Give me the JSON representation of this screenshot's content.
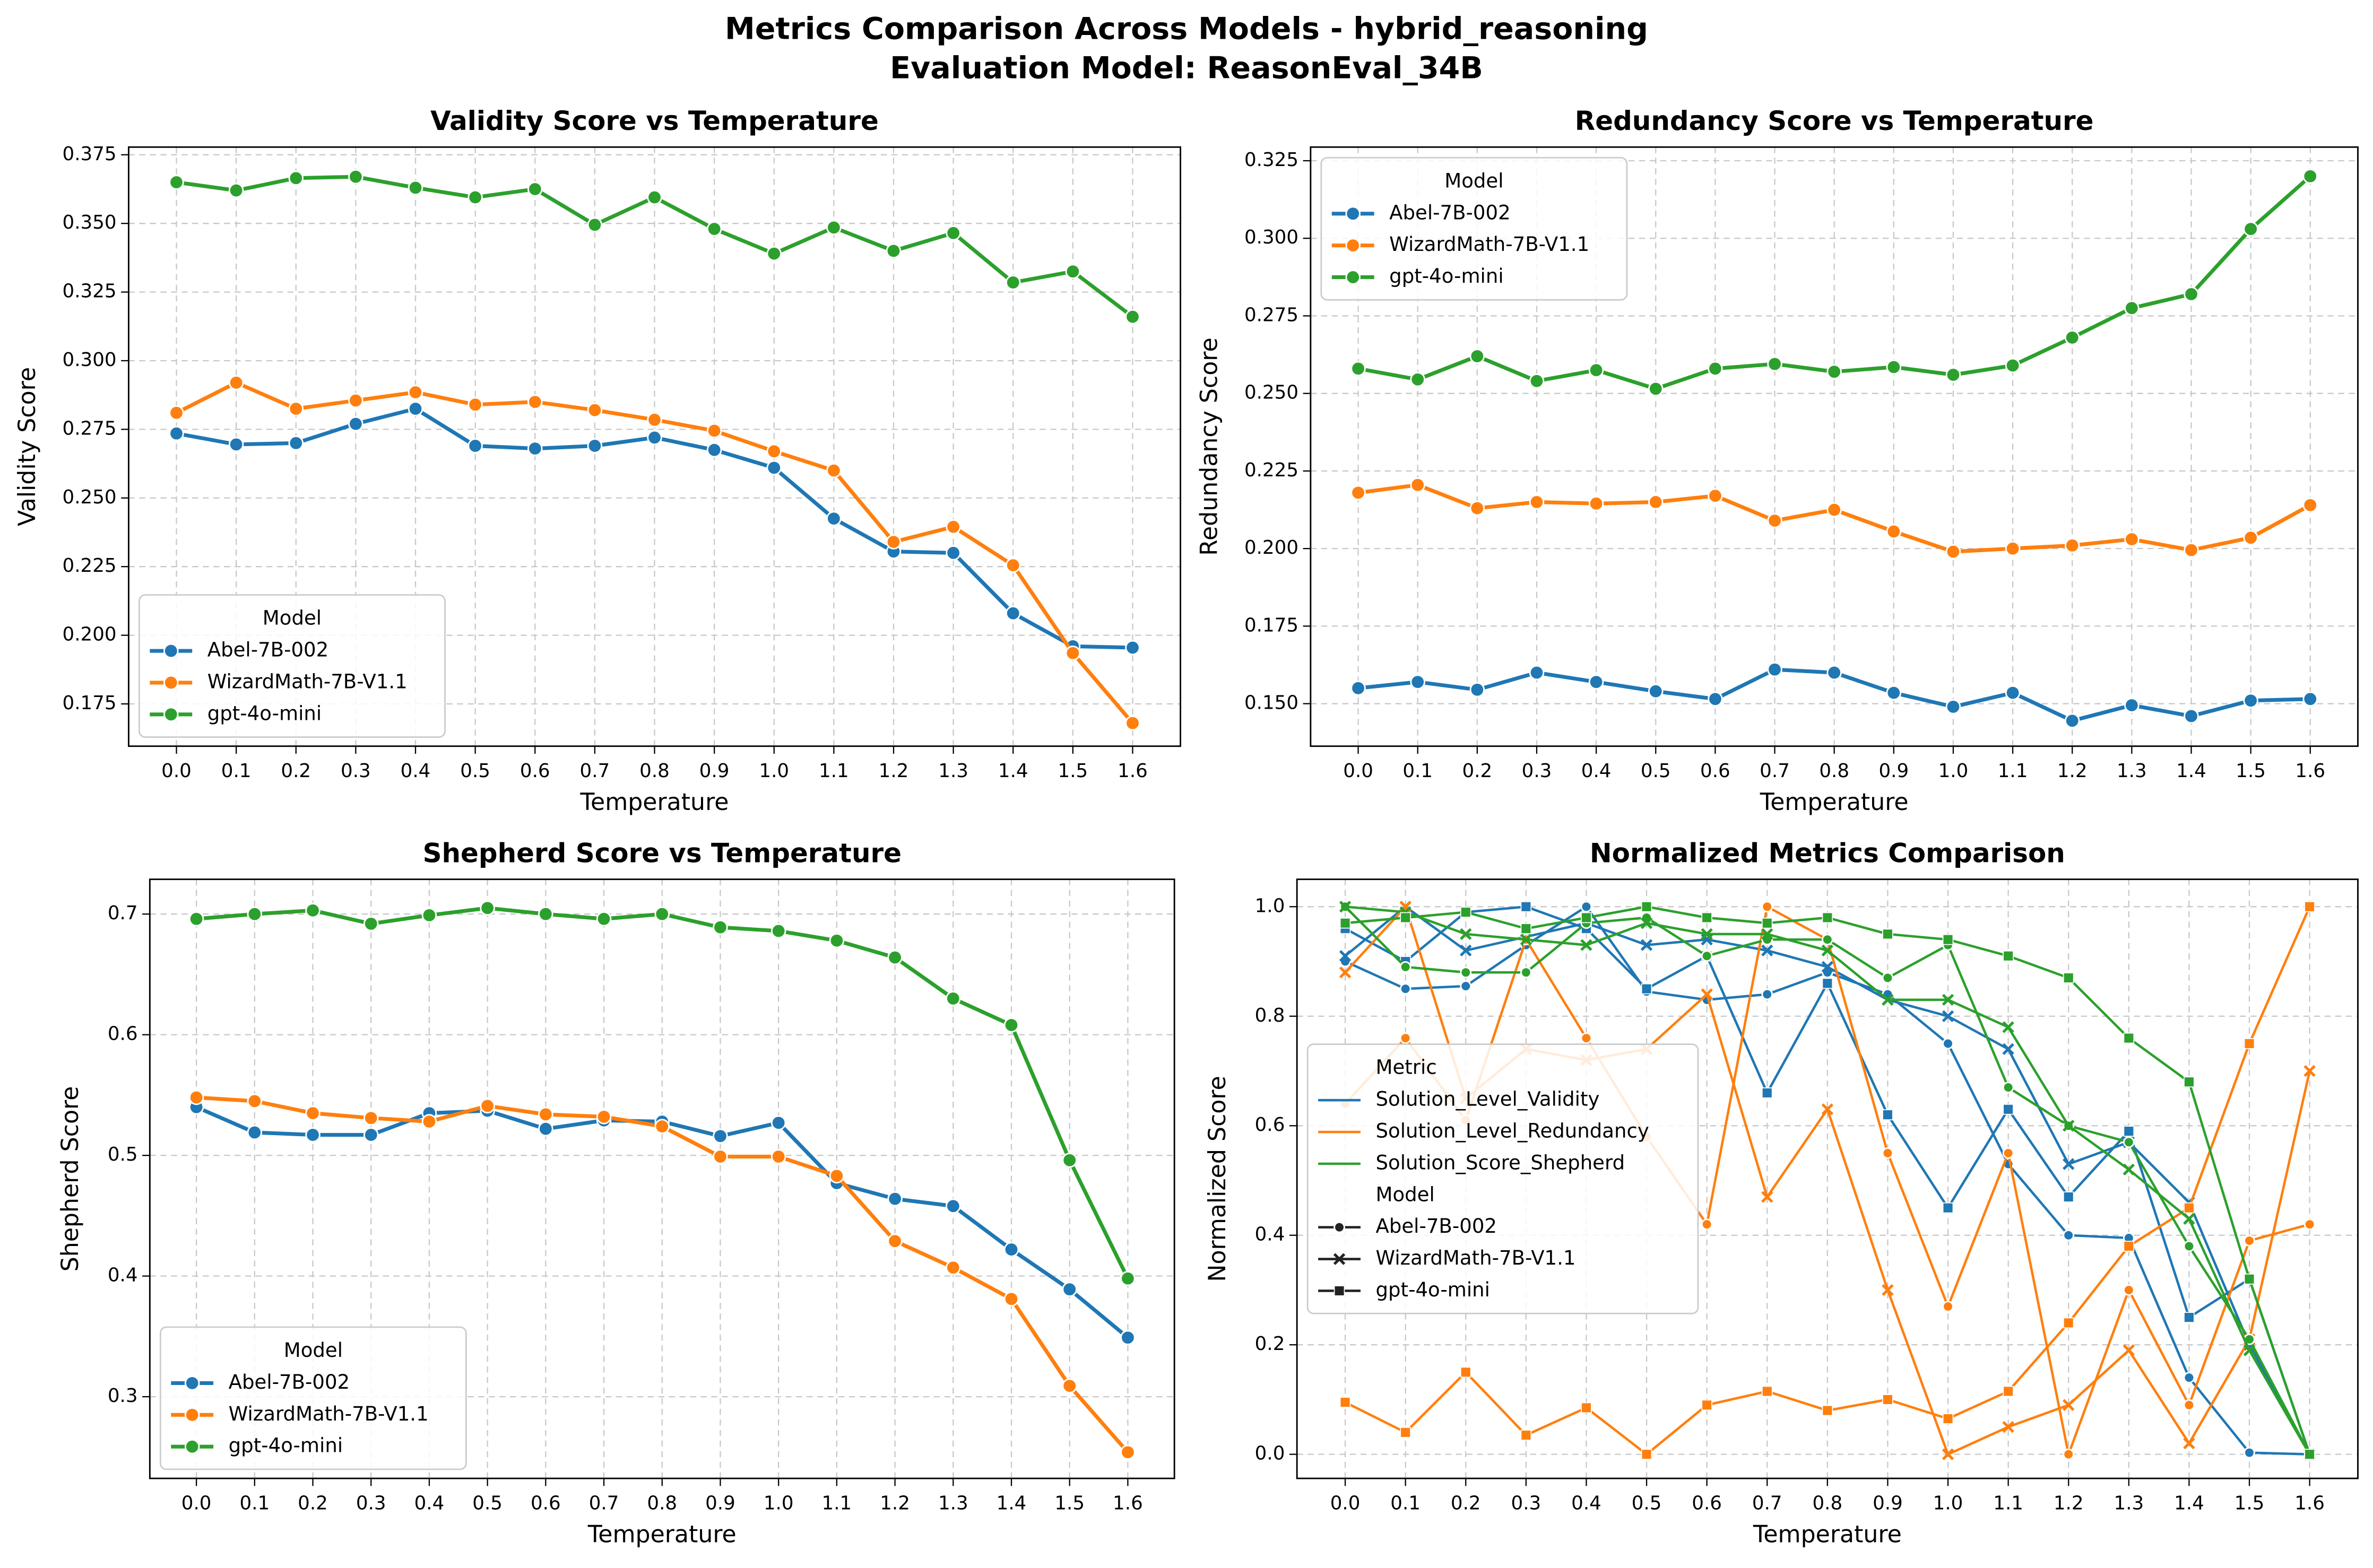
{
  "title": [
    "Metrics Comparison Across Models - hybrid_reasoning",
    "Evaluation Model: ReasonEval_34B"
  ],
  "chart_data": [
    {
      "type": "line",
      "title": "Validity Score vs Temperature",
      "x_label": "Temperature",
      "y_label": "Validity Score",
      "categories": [
        "0.0",
        "0.1",
        "0.2",
        "0.3",
        "0.4",
        "0.5",
        "0.6",
        "0.7",
        "0.8",
        "0.9",
        "1.0",
        "1.1",
        "1.2",
        "1.3",
        "1.4",
        "1.5",
        "1.6"
      ],
      "ylim": [
        0.1596,
        0.3778
      ],
      "yticks": [
        0.175,
        {
          "value": 0.2,
          "label": "0.200"
        },
        0.225,
        {
          "value": 0.25,
          "label": "0.250"
        },
        0.275,
        {
          "value": 0.3,
          "label": "0.300"
        },
        0.325,
        {
          "value": 0.35,
          "label": "0.350"
        },
        0.375
      ],
      "grid": true,
      "legend_title": "Model",
      "legend_loc": "lower left",
      "series": [
        {
          "name": "Abel-7B-002",
          "color": "#1f77b4",
          "values": [
            0.2735,
            0.2695,
            0.27,
            0.277,
            0.2825,
            0.269,
            0.268,
            0.269,
            0.272,
            0.2675,
            0.261,
            0.2425,
            0.2305,
            0.23,
            0.208,
            0.196,
            0.1955
          ]
        },
        {
          "name": "WizardMath-7B-V1.1",
          "color": "#ff7f0e",
          "values": [
            0.281,
            0.292,
            0.2825,
            0.2855,
            0.2885,
            0.284,
            0.285,
            0.282,
            0.2785,
            0.2745,
            0.267,
            0.26,
            0.234,
            0.2395,
            0.2255,
            0.1935,
            0.168
          ]
        },
        {
          "name": "gpt-4o-mini",
          "color": "#2ca02c",
          "values": [
            0.365,
            0.362,
            0.3665,
            0.367,
            0.363,
            0.3595,
            0.3625,
            0.3495,
            0.3595,
            0.348,
            0.339,
            0.3485,
            0.34,
            0.3465,
            0.3285,
            0.3325,
            0.316
          ]
        }
      ]
    },
    {
      "type": "line",
      "title": "Redundancy Score vs Temperature",
      "x_label": "Temperature",
      "y_label": "Redundancy Score",
      "categories": [
        "0.0",
        "0.1",
        "0.2",
        "0.3",
        "0.4",
        "0.5",
        "0.6",
        "0.7",
        "0.8",
        "0.9",
        "1.0",
        "1.1",
        "1.2",
        "1.3",
        "1.4",
        "1.5",
        "1.6"
      ],
      "ylim": [
        0.1363,
        0.3294
      ],
      "yticks": [
        {
          "value": 0.15,
          "label": "0.150"
        },
        0.175,
        {
          "value": 0.2,
          "label": "0.200"
        },
        0.225,
        {
          "value": 0.25,
          "label": "0.250"
        },
        0.275,
        {
          "value": 0.3,
          "label": "0.300"
        },
        0.325
      ],
      "grid": true,
      "legend_title": "Model",
      "legend_loc": "upper left",
      "series": [
        {
          "name": "Abel-7B-002",
          "color": "#1f77b4",
          "values": [
            0.155,
            0.157,
            0.1545,
            0.16,
            0.157,
            0.154,
            0.1515,
            0.161,
            0.16,
            0.1535,
            0.149,
            0.1535,
            0.1445,
            0.1495,
            0.146,
            0.151,
            0.1515
          ]
        },
        {
          "name": "WizardMath-7B-V1.1",
          "color": "#ff7f0e",
          "values": [
            0.218,
            0.2205,
            0.213,
            0.215,
            0.2145,
            0.215,
            0.217,
            0.209,
            0.2125,
            0.2055,
            0.199,
            0.2,
            0.201,
            0.203,
            0.1995,
            0.2035,
            0.214
          ]
        },
        {
          "name": "gpt-4o-mini",
          "color": "#2ca02c",
          "values": [
            0.258,
            0.2545,
            0.262,
            0.254,
            0.2575,
            0.2515,
            0.258,
            0.2595,
            0.257,
            0.2585,
            0.256,
            0.259,
            0.268,
            0.2775,
            0.282,
            0.303,
            0.32
          ]
        }
      ]
    },
    {
      "type": "line",
      "title": "Shepherd Score vs Temperature",
      "x_label": "Temperature",
      "y_label": "Shepherd Score",
      "categories": [
        "0.0",
        "0.1",
        "0.2",
        "0.3",
        "0.4",
        "0.5",
        "0.6",
        "0.7",
        "0.8",
        "0.9",
        "1.0",
        "1.1",
        "1.2",
        "1.3",
        "1.4",
        "1.5",
        "1.6"
      ],
      "ylim": [
        0.2323,
        0.7288
      ],
      "yticks": [
        0.3,
        0.4,
        0.5,
        0.6,
        0.7
      ],
      "grid": true,
      "legend_title": "Model",
      "legend_loc": "lower left",
      "series": [
        {
          "name": "Abel-7B-002",
          "color": "#1f77b4",
          "values": [
            0.54,
            0.519,
            0.517,
            0.517,
            0.535,
            0.537,
            0.522,
            0.529,
            0.528,
            0.516,
            0.527,
            0.477,
            0.464,
            0.458,
            0.422,
            0.389,
            0.349
          ]
        },
        {
          "name": "WizardMath-7B-V1.1",
          "color": "#ff7f0e",
          "values": [
            0.548,
            0.545,
            0.535,
            0.531,
            0.528,
            0.541,
            0.534,
            0.532,
            0.524,
            0.499,
            0.499,
            0.483,
            0.429,
            0.407,
            0.381,
            0.309,
            0.254
          ]
        },
        {
          "name": "gpt-4o-mini",
          "color": "#2ca02c",
          "values": [
            0.696,
            0.7,
            0.703,
            0.692,
            0.699,
            0.705,
            0.7,
            0.696,
            0.7,
            0.689,
            0.686,
            0.678,
            0.664,
            0.63,
            0.608,
            0.496,
            0.398
          ]
        }
      ]
    },
    {
      "type": "multiline",
      "title": "Normalized Metrics Comparison",
      "x_label": "Temperature",
      "y_label": "Normalized Score",
      "categories": [
        "0.0",
        "0.1",
        "0.2",
        "0.3",
        "0.4",
        "0.5",
        "0.6",
        "0.7",
        "0.8",
        "0.9",
        "1.0",
        "1.1",
        "1.2",
        "1.3",
        "1.4",
        "1.5",
        "1.6"
      ],
      "ylim": [
        -0.044,
        1.05
      ],
      "yticks": [
        {
          "value": 0,
          "label": "0.0"
        },
        0.2,
        0.4,
        0.6,
        0.8,
        {
          "value": 1,
          "label": "1.0"
        }
      ],
      "grid": true,
      "legend_loc": "center left",
      "legend_sections": [
        {
          "title": "Metric",
          "entries": [
            {
              "name": "Solution_Level_Validity",
              "color": "#1f77b4"
            },
            {
              "name": "Solution_Level_Redundancy",
              "color": "#ff7f0e"
            },
            {
              "name": "Solution_Score_Shepherd",
              "color": "#2ca02c"
            }
          ]
        },
        {
          "title": "Model",
          "entries": [
            {
              "name": "Abel-7B-002",
              "marker": "circle"
            },
            {
              "name": "WizardMath-7B-V1.1",
              "marker": "x"
            },
            {
              "name": "gpt-4o-mini",
              "marker": "square"
            }
          ]
        }
      ],
      "series": [
        {
          "metric": "Solution_Level_Validity",
          "model": "Abel-7B-002",
          "values": [
            0.9,
            0.85,
            0.855,
            0.93,
            1.0,
            0.845,
            0.83,
            0.84,
            0.88,
            0.84,
            0.75,
            0.53,
            0.4,
            0.395,
            0.14,
            0.003,
            0.0
          ]
        },
        {
          "metric": "Solution_Level_Validity",
          "model": "WizardMath-7B-V1.1",
          "values": [
            0.91,
            1.0,
            0.92,
            0.945,
            0.97,
            0.93,
            0.94,
            0.92,
            0.89,
            0.83,
            0.8,
            0.74,
            0.53,
            0.57,
            0.46,
            0.2,
            0.0
          ]
        },
        {
          "metric": "Solution_Level_Validity",
          "model": "gpt-4o-mini",
          "values": [
            0.96,
            0.9,
            0.99,
            1.0,
            0.96,
            0.85,
            0.91,
            0.66,
            0.86,
            0.62,
            0.45,
            0.63,
            0.47,
            0.59,
            0.25,
            0.32,
            0.0
          ]
        },
        {
          "metric": "Solution_Level_Redundancy",
          "model": "Abel-7B-002",
          "values": [
            0.64,
            0.76,
            0.61,
            0.94,
            0.76,
            0.58,
            0.42,
            1.0,
            0.94,
            0.55,
            0.27,
            0.55,
            0.0,
            0.3,
            0.09,
            0.39,
            0.42
          ]
        },
        {
          "metric": "Solution_Level_Redundancy",
          "model": "WizardMath-7B-V1.1",
          "values": [
            0.88,
            1.0,
            0.65,
            0.74,
            0.72,
            0.74,
            0.84,
            0.47,
            0.63,
            0.3,
            0.0,
            0.05,
            0.09,
            0.19,
            0.02,
            0.21,
            0.7
          ]
        },
        {
          "metric": "Solution_Level_Redundancy",
          "model": "gpt-4o-mini",
          "values": [
            0.095,
            0.04,
            0.15,
            0.035,
            0.085,
            0.0,
            0.09,
            0.115,
            0.08,
            0.1,
            0.065,
            0.115,
            0.24,
            0.38,
            0.45,
            0.75,
            1.0
          ]
        },
        {
          "metric": "Solution_Score_Shepherd",
          "model": "Abel-7B-002",
          "values": [
            1.0,
            0.89,
            0.88,
            0.88,
            0.97,
            0.98,
            0.91,
            0.94,
            0.94,
            0.87,
            0.93,
            0.67,
            0.6,
            0.57,
            0.38,
            0.21,
            0.0
          ]
        },
        {
          "metric": "Solution_Score_Shepherd",
          "model": "WizardMath-7B-V1.1",
          "values": [
            1.0,
            0.99,
            0.95,
            0.94,
            0.93,
            0.97,
            0.95,
            0.95,
            0.92,
            0.83,
            0.83,
            0.78,
            0.6,
            0.52,
            0.43,
            0.19,
            0.0
          ]
        },
        {
          "metric": "Solution_Score_Shepherd",
          "model": "gpt-4o-mini",
          "values": [
            0.97,
            0.98,
            0.99,
            0.96,
            0.98,
            1.0,
            0.98,
            0.97,
            0.98,
            0.95,
            0.94,
            0.91,
            0.87,
            0.76,
            0.68,
            0.32,
            0.0
          ]
        }
      ]
    }
  ]
}
